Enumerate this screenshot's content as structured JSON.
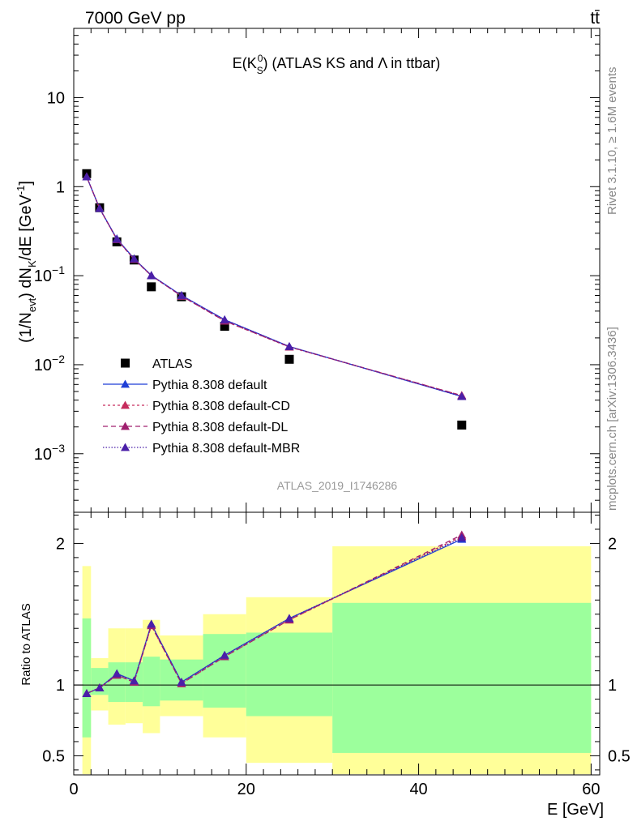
{
  "header": {
    "left": "7000 GeV pp",
    "right": "tt̄",
    "side_rivet": "Rivet 3.1.10, ≥ 1.6M events",
    "side_mcplots": "mcplots.cern.ch [arXiv:1306.3436]"
  },
  "chart_data": [
    {
      "type": "scatter",
      "panel": "main",
      "title_main": "E(K",
      "title_sub": "S",
      "title_sup": "0",
      "title_rest": ") (ATLAS KS and Λ in ttbar)",
      "ylabel": "(1/N_evt) dN_K/dE [GeV^-1]",
      "ylabel_parts": {
        "a": "(1/N",
        "a_sub": "evt",
        "b": ") dN",
        "b_sub": "K",
        "c": "/dE [GeV",
        "c_sup": "-1",
        "d": "]"
      },
      "yscale": "log",
      "ylim": [
        0.00022,
        60
      ],
      "xlim": [
        0,
        61
      ],
      "yticks": [
        {
          "value": 10,
          "label": "10"
        },
        {
          "value": 1,
          "label": "1"
        },
        {
          "value": 0.1,
          "base": "10",
          "exp": "−1"
        },
        {
          "value": 0.01,
          "base": "10",
          "exp": "−2"
        },
        {
          "value": 0.001,
          "base": "10",
          "exp": "−3"
        }
      ],
      "watermark": "ATLAS_2019_I1746286",
      "legend_placement": "lower-left",
      "series": [
        {
          "name": "ATLAS",
          "style": "data",
          "color": "#000000",
          "x": [
            1.5,
            3.0,
            5.0,
            7.0,
            9.0,
            12.5,
            17.5,
            25.0,
            45.0
          ],
          "y": [
            1.4,
            0.58,
            0.24,
            0.15,
            0.075,
            0.058,
            0.027,
            0.0115,
            0.0021
          ]
        },
        {
          "name": "Pythia 8.308 default",
          "style": "solid",
          "color": "#1f3fd6",
          "x": [
            1.5,
            3.0,
            5.0,
            7.0,
            9.0,
            12.5,
            17.5,
            25.0,
            45.0
          ],
          "y": [
            1.29,
            0.57,
            0.26,
            0.155,
            0.101,
            0.06,
            0.032,
            0.016,
            0.0044
          ]
        },
        {
          "name": "Pythia 8.308 default-CD",
          "style": "dotted",
          "color": "#c62c5d",
          "x": [
            1.5,
            3.0,
            5.0,
            7.0,
            9.0,
            12.5,
            17.5,
            25.0,
            45.0
          ],
          "y": [
            1.29,
            0.57,
            0.255,
            0.153,
            0.1,
            0.059,
            0.031,
            0.0158,
            0.0045
          ]
        },
        {
          "name": "Pythia 8.308 default-DL",
          "style": "dashed",
          "color": "#a0206f",
          "x": [
            1.5,
            3.0,
            5.0,
            7.0,
            9.0,
            12.5,
            17.5,
            25.0,
            45.0
          ],
          "y": [
            1.29,
            0.57,
            0.256,
            0.153,
            0.1,
            0.059,
            0.031,
            0.0159,
            0.0045
          ]
        },
        {
          "name": "Pythia 8.308 default-MBR",
          "style": "densedot",
          "color": "#4a1fa8",
          "x": [
            1.5,
            3.0,
            5.0,
            7.0,
            9.0,
            12.5,
            17.5,
            25.0,
            45.0
          ],
          "y": [
            1.29,
            0.57,
            0.257,
            0.155,
            0.1,
            0.06,
            0.032,
            0.016,
            0.0044
          ]
        }
      ]
    },
    {
      "type": "line",
      "panel": "ratio",
      "ylabel": "Ratio to ATLAS",
      "xlabel": "E [GeV]",
      "ylim": [
        0.365,
        2.22
      ],
      "xlim": [
        0,
        61
      ],
      "yticks": [
        {
          "value": 0.5,
          "label": "0.5"
        },
        {
          "value": 1,
          "label": "1"
        },
        {
          "value": 2,
          "label": "2"
        }
      ],
      "xticks": [
        {
          "value": 0,
          "label": "0"
        },
        {
          "value": 20,
          "label": "20"
        },
        {
          "value": 40,
          "label": "40"
        },
        {
          "value": 60,
          "label": "60"
        }
      ],
      "bands": [
        {
          "x0": 1,
          "x1": 2,
          "y1lo": 0.63,
          "y1hi": 1.47,
          "y2lo": 0.37,
          "y2hi": 1.84
        },
        {
          "x0": 2,
          "x1": 4,
          "y1lo": 0.93,
          "y1hi": 1.12,
          "y2lo": 0.82,
          "y2hi": 1.19
        },
        {
          "x0": 4,
          "x1": 6,
          "y1lo": 0.88,
          "y1hi": 1.16,
          "y2lo": 0.72,
          "y2hi": 1.4
        },
        {
          "x0": 6,
          "x1": 8,
          "y1lo": 0.88,
          "y1hi": 1.16,
          "y2lo": 0.73,
          "y2hi": 1.4
        },
        {
          "x0": 8,
          "x1": 10,
          "y1lo": 0.85,
          "y1hi": 1.2,
          "y2lo": 0.66,
          "y2hi": 1.46
        },
        {
          "x0": 10,
          "x1": 15,
          "y1lo": 0.89,
          "y1hi": 1.18,
          "y2lo": 0.78,
          "y2hi": 1.35
        },
        {
          "x0": 15,
          "x1": 20,
          "y1lo": 0.84,
          "y1hi": 1.36,
          "y2lo": 0.63,
          "y2hi": 1.5
        },
        {
          "x0": 20,
          "x1": 30,
          "y1lo": 0.78,
          "y1hi": 1.37,
          "y2lo": 0.45,
          "y2hi": 1.62
        },
        {
          "x0": 30,
          "x1": 60,
          "y1lo": 0.52,
          "y1hi": 1.58,
          "y2lo": 0.37,
          "y2hi": 1.98
        }
      ],
      "band_colors": {
        "inner": "#9cff9c",
        "outer": "#ffff99"
      },
      "reference": 1,
      "series": [
        {
          "name": "Pythia 8.308 default",
          "style": "solid",
          "color": "#1f3fd6",
          "x": [
            1.5,
            3.0,
            5.0,
            7.0,
            9.0,
            12.5,
            17.5,
            25.0,
            45.0
          ],
          "y": [
            0.94,
            0.98,
            1.08,
            1.03,
            1.43,
            1.02,
            1.21,
            1.47,
            2.03
          ]
        },
        {
          "name": "Pythia 8.308 default-CD",
          "style": "dotted",
          "color": "#c62c5d",
          "x": [
            1.5,
            3.0,
            5.0,
            7.0,
            9.0,
            12.5,
            17.5,
            25.0,
            45.0
          ],
          "y": [
            0.94,
            0.98,
            1.07,
            1.02,
            1.42,
            1.01,
            1.2,
            1.46,
            2.05
          ]
        },
        {
          "name": "Pythia 8.308 default-DL",
          "style": "dashed",
          "color": "#a0206f",
          "x": [
            1.5,
            3.0,
            5.0,
            7.0,
            9.0,
            12.5,
            17.5,
            25.0,
            45.0
          ],
          "y": [
            0.94,
            0.98,
            1.07,
            1.02,
            1.42,
            1.01,
            1.2,
            1.46,
            2.06
          ]
        },
        {
          "name": "Pythia 8.308 default-MBR",
          "style": "densedot",
          "color": "#4a1fa8",
          "x": [
            1.5,
            3.0,
            5.0,
            7.0,
            9.0,
            12.5,
            17.5,
            25.0,
            45.0
          ],
          "y": [
            0.94,
            0.98,
            1.08,
            1.03,
            1.43,
            1.02,
            1.21,
            1.47,
            2.04
          ]
        }
      ]
    }
  ]
}
